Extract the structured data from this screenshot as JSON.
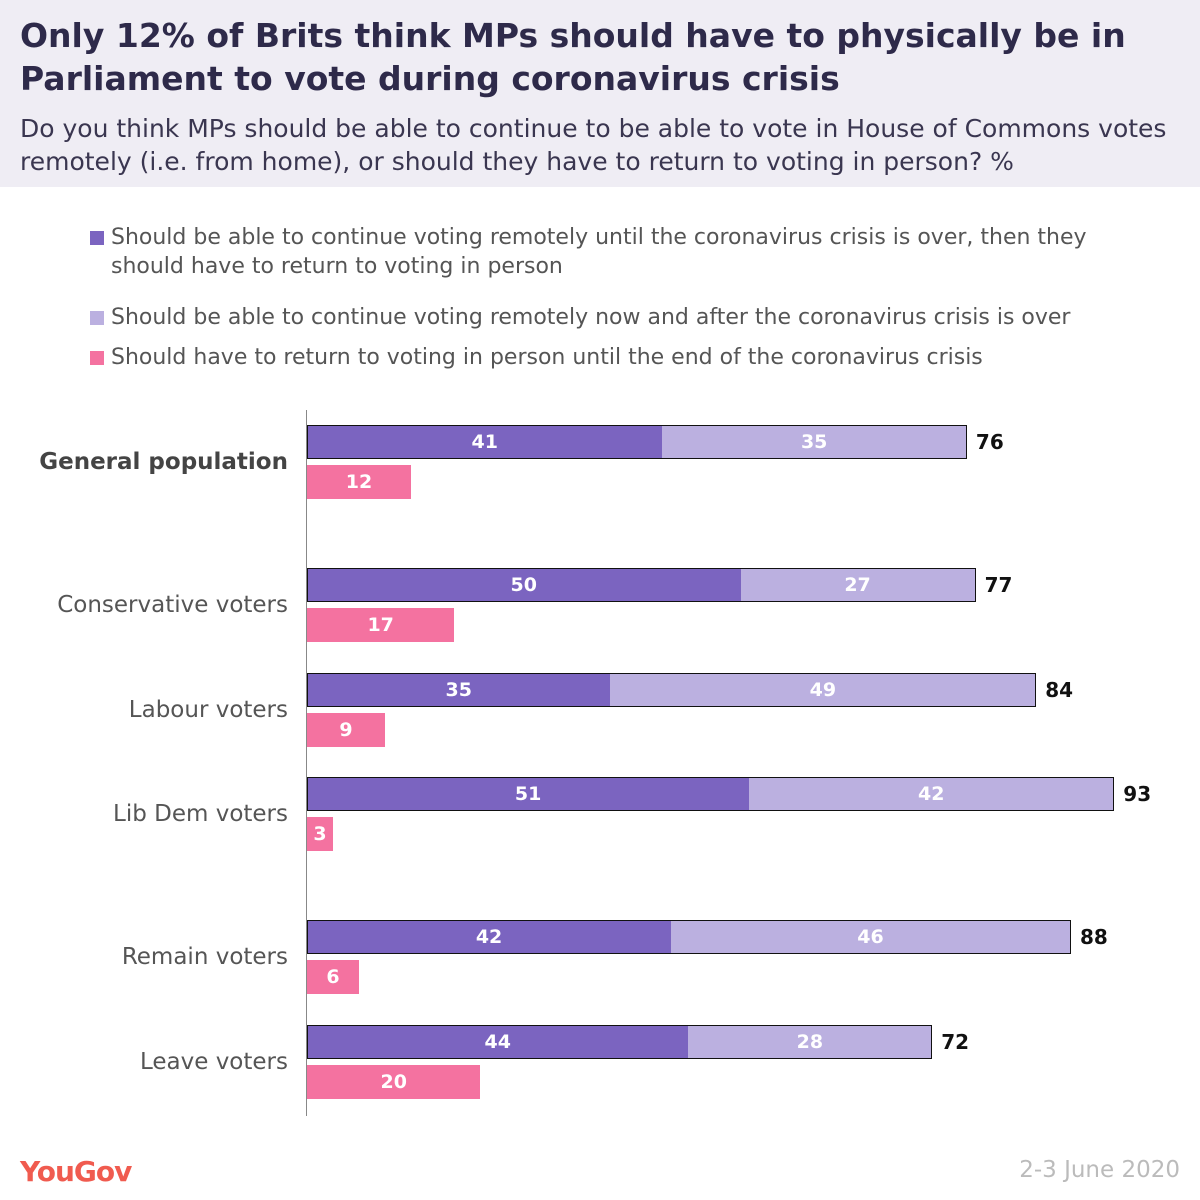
{
  "title": "Only 12% of Brits think MPs should have to physically be in Parliament to vote during coronavirus crisis",
  "subtitle": "Do you think MPs should be able to continue to be able to vote in House of Commons votes remotely (i.e. from home), or should they have to return to voting in person? %",
  "footer": {
    "logo": "YouGov",
    "date": "2-3 June 2020"
  },
  "chart_data": {
    "type": "bar",
    "orientation": "horizontal",
    "categories": [
      "General population",
      "Conservative voters",
      "Labour voters",
      "Lib Dem voters",
      "Remain voters",
      "Leave voters"
    ],
    "series": [
      {
        "name": "Should be able to continue voting remotely until the coronavirus crisis is over, then they should have to return to voting in person",
        "color": "#7b64c0",
        "values": [
          41,
          50,
          35,
          51,
          42,
          44
        ]
      },
      {
        "name": "Should be able to continue voting remotely now and after the coronavirus crisis is over",
        "color": "#bbb0e0",
        "values": [
          35,
          27,
          49,
          42,
          46,
          28
        ]
      },
      {
        "name": "Should have to return to voting in person until the end of the coronavirus crisis",
        "color": "#f472a0",
        "values": [
          12,
          17,
          9,
          3,
          6,
          20
        ]
      }
    ],
    "totals": [
      76,
      77,
      84,
      93,
      88,
      72
    ],
    "xlim": [
      0,
      100
    ]
  }
}
